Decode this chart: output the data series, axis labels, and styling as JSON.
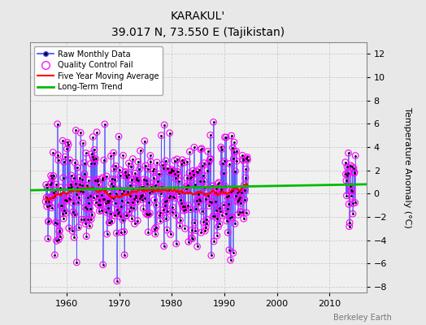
{
  "title": "KARAKUL'",
  "subtitle": "39.017 N, 73.550 E (Tajikistan)",
  "ylabel": "Temperature Anomaly (°C)",
  "ylim": [
    -8.5,
    13
  ],
  "xlim": [
    1953,
    2017
  ],
  "xticks": [
    1960,
    1970,
    1980,
    1990,
    2000,
    2010
  ],
  "yticks": [
    -8,
    -6,
    -4,
    -2,
    0,
    2,
    4,
    6,
    8,
    10,
    12
  ],
  "plot_bg": "#f0f0f0",
  "fig_bg": "#e8e8e8",
  "grid_color": "#cccccc",
  "raw_line_color": "#4444ff",
  "dot_color": "#000000",
  "qc_color": "#ff00ff",
  "ma_color": "#ff0000",
  "trend_color": "#00bb00",
  "watermark": "Berkeley Earth",
  "legend_labels": [
    "Raw Monthly Data",
    "Quality Control Fail",
    "Five Year Moving Average",
    "Long-Term Trend"
  ],
  "trend_slope": 0.008,
  "trend_intercept": 0.3,
  "seed": 15
}
